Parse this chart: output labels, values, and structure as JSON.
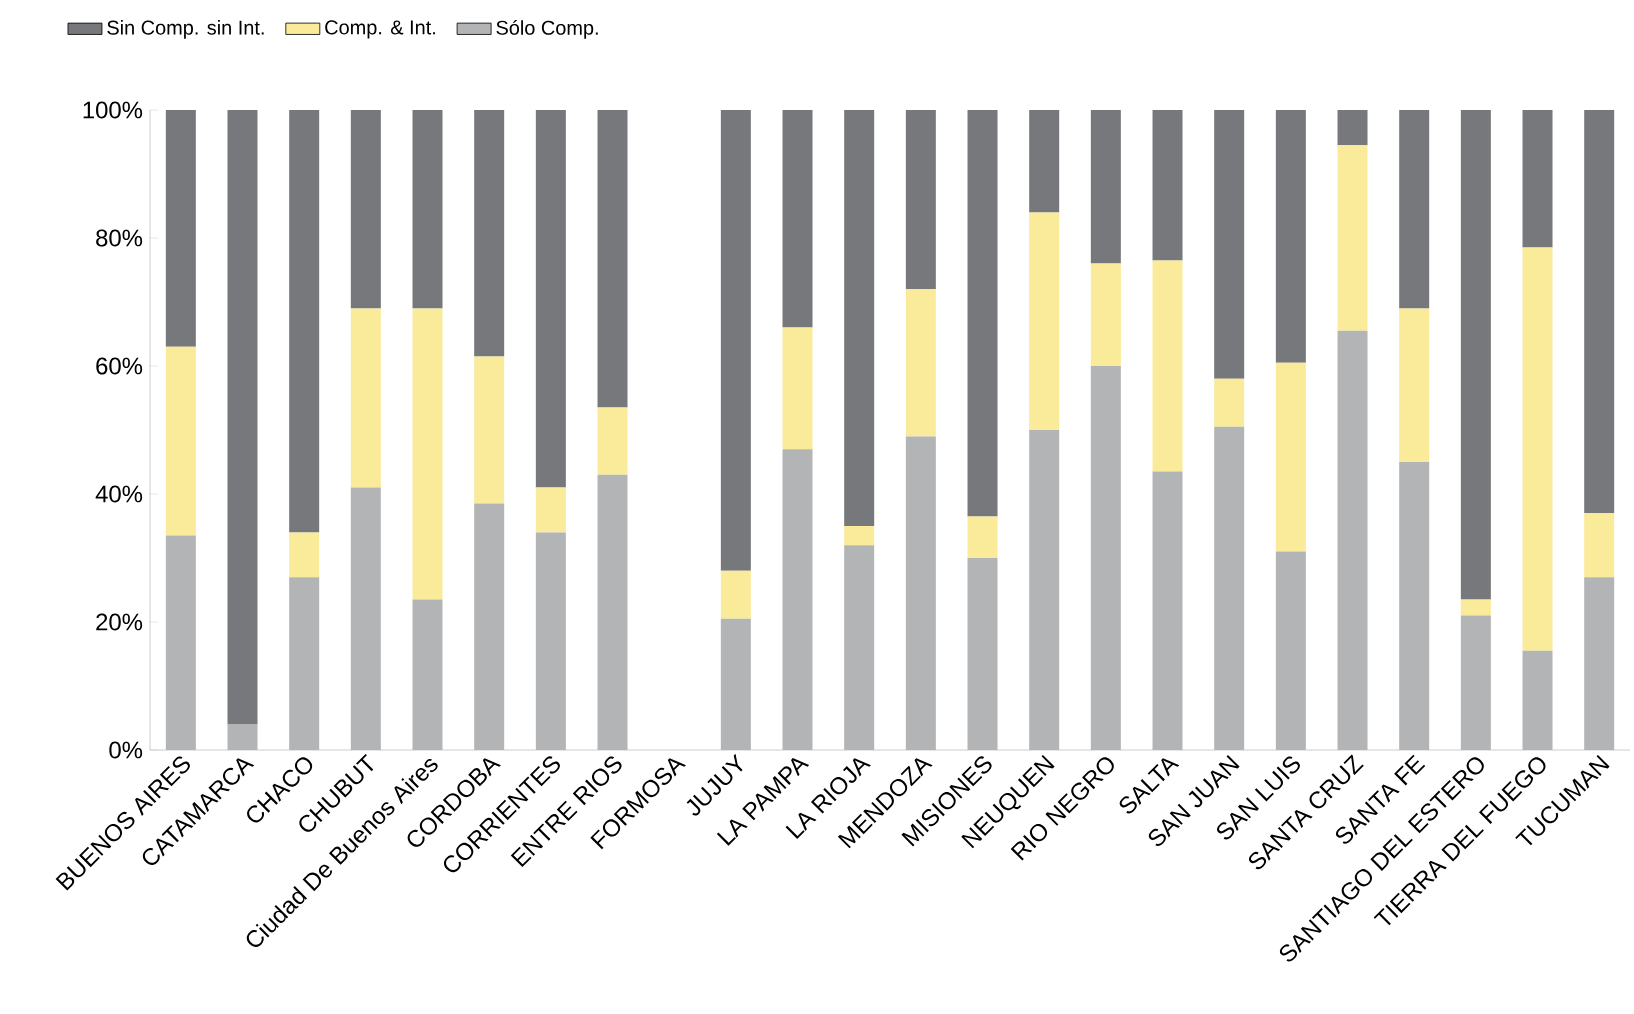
{
  "chart_data": {
    "type": "bar",
    "stacked": true,
    "legend": "top left",
    "grid": false,
    "categories": [
      "BUENOS AIRES",
      "CATAMARCA",
      "CHACO",
      "CHUBUT",
      "Ciudad De Buenos Aires",
      "CORDOBA",
      "CORRIENTES",
      "ENTRE RIOS",
      "FORMOSA",
      "JUJUY",
      "LA PAMPA",
      "LA RIOJA",
      "MENDOZA",
      "MISIONES",
      "NEUQUEN",
      "RIO NEGRO",
      "SALTA",
      "SAN JUAN",
      "SAN LUIS",
      "SANTA CRUZ",
      "SANTA FE",
      "SANTIAGO DEL ESTERO",
      "TIERRA DEL FUEGO",
      "TUCUMAN"
    ],
    "series": [
      {
        "name": "Sólo Comp.",
        "color": "#b3b4b5",
        "values": [
          33.5,
          4,
          27,
          41,
          23.5,
          38.5,
          34,
          43,
          null,
          20.5,
          47,
          32,
          49,
          30,
          50,
          60,
          43.5,
          50.5,
          31,
          65.5,
          45,
          21,
          15.5,
          27
        ]
      },
      {
        "name": "Comp. & Int.",
        "color": "#f9eb9a",
        "values": [
          29.5,
          0,
          7,
          28,
          45.5,
          23,
          7,
          10.5,
          null,
          7.5,
          19,
          3,
          23,
          6.5,
          34,
          16,
          33,
          7.5,
          29.5,
          29,
          24,
          2.5,
          63,
          10
        ]
      },
      {
        "name": "Sin Comp. sin Int.",
        "color": "#77787b",
        "values": [
          37,
          96,
          66,
          31,
          31,
          38.5,
          59,
          46.5,
          null,
          72,
          34,
          65,
          28,
          63.5,
          16,
          24,
          23.5,
          42,
          39.5,
          5.5,
          31,
          76.5,
          21.5,
          63
        ]
      }
    ],
    "ylim": [
      0,
      100
    ],
    "yticks": [
      {
        "value": 0,
        "label": "0%"
      },
      {
        "value": 20,
        "label": "20%"
      },
      {
        "value": 40,
        "label": "40%"
      },
      {
        "value": 60,
        "label": "60%"
      },
      {
        "value": 80,
        "label": "80%"
      },
      {
        "value": 100,
        "label": "100%"
      }
    ]
  }
}
